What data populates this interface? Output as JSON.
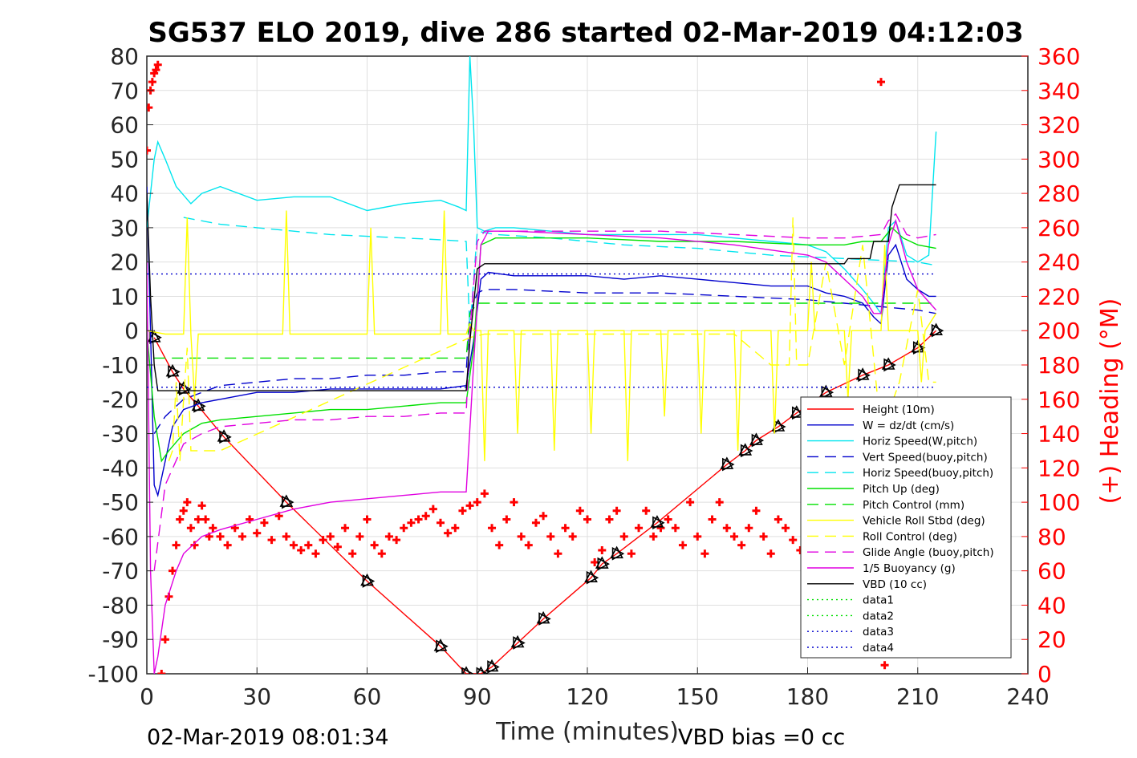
{
  "chart_data": {
    "type": "line",
    "title": "SG537 ELO 2019, dive 286 started 02-Mar-2019 04:12:03",
    "xlabel": "Time (minutes)",
    "ylabel_right": "(+) Heading (°M)",
    "xlim": [
      0,
      240
    ],
    "ylim": [
      -100,
      80
    ],
    "ylim_right": [
      0,
      360
    ],
    "x_ticks": [
      "0",
      "30",
      "60",
      "90",
      "120",
      "150",
      "180",
      "210",
      "240"
    ],
    "y_ticks": [
      "80",
      "70",
      "60",
      "50",
      "40",
      "30",
      "20",
      "10",
      "0",
      "-10",
      "-20",
      "-30",
      "-40",
      "-50",
      "-60",
      "-70",
      "-80",
      "-90",
      "-100"
    ],
    "y_right_ticks": [
      "360",
      "340",
      "320",
      "300",
      "280",
      "260",
      "240",
      "220",
      "200",
      "180",
      "160",
      "140",
      "120",
      "100",
      "80",
      "60",
      "40",
      "20",
      "0"
    ],
    "grid": true,
    "legend_position": "lower-right",
    "footer_left": "02-Mar-2019 08:01:34",
    "footer_right": "VBD bias =0 cc",
    "colors": {
      "height": "#ff0000",
      "w": "#0000cd",
      "horiz_w": "#00e5ee",
      "vert_buoy": "#0000cd",
      "horiz_buoy": "#00e5ee",
      "pitch": "#00e000",
      "pitch_ctrl": "#00e000",
      "roll": "#ffff00",
      "roll_ctrl": "#ffff00",
      "glide": "#e000e0",
      "buoyancy": "#e000e0",
      "vbd": "#000000",
      "heading": "#ff0000"
    },
    "series": [
      {
        "name": "Height (10m)",
        "color": "#ff0000",
        "dash": "",
        "marker": "triangle",
        "x": [
          2,
          7,
          10,
          14,
          21,
          38,
          60,
          80,
          87,
          91,
          94,
          101,
          108,
          121,
          124,
          128,
          139,
          158,
          163,
          166,
          172,
          177,
          185,
          195,
          202,
          210,
          215
        ],
        "y": [
          -2,
          -12,
          -17,
          -22,
          -31,
          -50,
          -73,
          -92,
          -100,
          -100,
          -98,
          -91,
          -84,
          -72,
          -68,
          -65,
          -56,
          -39,
          -35,
          -32,
          -28,
          -24,
          -18,
          -13,
          -10,
          -5,
          0
        ]
      },
      {
        "name": "W = dz/dt (cm/s)",
        "color": "#0000cd",
        "dash": "",
        "x": [
          0,
          1,
          2,
          3,
          5,
          7,
          10,
          15,
          20,
          30,
          40,
          50,
          60,
          70,
          80,
          87,
          89,
          91,
          93,
          100,
          110,
          120,
          130,
          140,
          150,
          160,
          170,
          180,
          185,
          190,
          195,
          198,
          200,
          202,
          204,
          207,
          210,
          213,
          215
        ],
        "y": [
          42,
          0,
          -45,
          -48,
          -38,
          -28,
          -23,
          -21,
          -20,
          -18,
          -18,
          -17,
          -17,
          -17,
          -17,
          -16,
          -3,
          15,
          17,
          16,
          16,
          16,
          15,
          16,
          15,
          14,
          13,
          13,
          11,
          10,
          8,
          4,
          2,
          22,
          25,
          15,
          12,
          10,
          10
        ]
      },
      {
        "name": "Horiz Speed(W,pitch)",
        "color": "#00e5ee",
        "dash": "",
        "x": [
          0,
          2,
          3,
          5,
          8,
          12,
          15,
          20,
          30,
          40,
          50,
          60,
          70,
          80,
          85,
          87,
          88,
          89,
          90,
          92,
          95,
          100,
          110,
          120,
          130,
          140,
          150,
          160,
          170,
          180,
          185,
          190,
          195,
          198,
          200,
          202,
          204,
          207,
          210,
          213,
          215
        ],
        "y": [
          30,
          50,
          55,
          50,
          42,
          37,
          40,
          42,
          38,
          39,
          39,
          35,
          37,
          38,
          36,
          35,
          80,
          60,
          30,
          29,
          30,
          30,
          29,
          28,
          28,
          28,
          28,
          27,
          26,
          25,
          23,
          18,
          12,
          8,
          5,
          30,
          32,
          22,
          20,
          22,
          58
        ]
      },
      {
        "name": "Vert Speed(buoy,pitch)",
        "color": "#0000cd",
        "dash": "14,8",
        "x": [
          2,
          5,
          10,
          15,
          20,
          30,
          40,
          50,
          60,
          70,
          80,
          87,
          88,
          90,
          92,
          100,
          120,
          140,
          160,
          180,
          190,
          200,
          210,
          215
        ],
        "y": [
          -30,
          -25,
          -20,
          -18,
          -16,
          -15,
          -14,
          -14,
          -13,
          -13,
          -12,
          -12,
          5,
          11,
          12,
          12,
          11,
          11,
          10,
          9,
          8,
          7,
          6,
          5
        ]
      },
      {
        "name": "Horiz Speed(buoy,pitch)",
        "color": "#00e5ee",
        "dash": "14,8",
        "x": [
          10,
          20,
          30,
          40,
          50,
          60,
          70,
          80,
          87,
          88,
          90,
          95,
          110,
          130,
          150,
          170,
          190,
          210,
          215
        ],
        "y": [
          33,
          31,
          30,
          29,
          28,
          27.5,
          27,
          26.5,
          26,
          0,
          29,
          28,
          27,
          25,
          24,
          22,
          21,
          20,
          19
        ]
      },
      {
        "name": "Pitch Up (deg)",
        "color": "#00e000",
        "dash": "",
        "x": [
          0,
          2,
          4,
          6,
          10,
          15,
          20,
          30,
          40,
          50,
          60,
          70,
          80,
          87,
          89,
          91,
          95,
          100,
          120,
          140,
          160,
          180,
          190,
          195,
          200,
          203,
          206,
          210,
          215
        ],
        "y": [
          0,
          -25,
          -38,
          -35,
          -30,
          -27,
          -26,
          -25,
          -24,
          -23,
          -23,
          -22,
          -21,
          -21,
          -5,
          25,
          27,
          27,
          27,
          26,
          26,
          25,
          25,
          26,
          26,
          30,
          27,
          25,
          24
        ]
      },
      {
        "name": "Pitch Control (mm)",
        "color": "#00e000",
        "dash": "14,8",
        "x": [
          2,
          10,
          20,
          40,
          60,
          80,
          87,
          88,
          90,
          100,
          130,
          160,
          190,
          215
        ],
        "y": [
          -8,
          -8,
          -8,
          -8,
          -8,
          -8,
          -8,
          5,
          8,
          8,
          8,
          8,
          8,
          8
        ]
      },
      {
        "name": "Vehicle Roll Stbd (deg)",
        "color": "#ffff00",
        "dash": "",
        "x": [
          0,
          5,
          8,
          10,
          11,
          12,
          13,
          14,
          20,
          37,
          38,
          39,
          60,
          61,
          62,
          80,
          81,
          82,
          87,
          88,
          89,
          91,
          92,
          93,
          100,
          101,
          102,
          110,
          111,
          112,
          120,
          121,
          122,
          130,
          131,
          132,
          140,
          141,
          142,
          150,
          151,
          152,
          160,
          161,
          162,
          170,
          171,
          172,
          180,
          181,
          182,
          190,
          191,
          192,
          200,
          201,
          202,
          210,
          211,
          212,
          215
        ],
        "y": [
          0,
          -1,
          -1,
          -1,
          33,
          -1,
          -20,
          -1,
          -1,
          -1,
          35,
          -1,
          -1,
          30,
          -1,
          -1,
          35,
          -1,
          -1,
          2,
          0,
          0,
          -38,
          0,
          0,
          -30,
          0,
          0,
          -35,
          0,
          0,
          -30,
          0,
          0,
          -38,
          0,
          0,
          -25,
          0,
          0,
          -30,
          0,
          0,
          -35,
          0,
          0,
          -30,
          0,
          0,
          20,
          0,
          0,
          -20,
          0,
          0,
          25,
          0,
          0,
          -15,
          0,
          5
        ]
      },
      {
        "name": "Roll Control (deg)",
        "color": "#ffff00",
        "dash": "14,8",
        "x": [
          6,
          7,
          8,
          9,
          10,
          11,
          12,
          20,
          88,
          92,
          120,
          160,
          170,
          175,
          176,
          177,
          180,
          185,
          190,
          195,
          200,
          205,
          210,
          213,
          215
        ],
        "y": [
          -38,
          -35,
          -15,
          -38,
          -20,
          -5,
          -35,
          -35,
          -2,
          -1,
          -1,
          -1,
          -10,
          -10,
          33,
          -10,
          -10,
          20,
          -10,
          25,
          -30,
          -15,
          12,
          -15,
          -15
        ]
      },
      {
        "name": "Glide Angle (buoy,pitch)",
        "color": "#e000e0",
        "dash": "14,8",
        "x": [
          2,
          5,
          10,
          15,
          20,
          30,
          40,
          50,
          60,
          70,
          80,
          87,
          88,
          90,
          92,
          100,
          120,
          140,
          160,
          180,
          190,
          200,
          202,
          204,
          207,
          210,
          215
        ],
        "y": [
          -70,
          -45,
          -33,
          -30,
          -28,
          -27,
          -26,
          -26,
          -25,
          -25,
          -24,
          -24,
          0,
          26,
          29,
          29,
          29,
          29,
          28,
          27,
          27,
          28,
          32,
          34,
          28,
          27,
          28
        ]
      },
      {
        "name": "1/5 Buoyancy (g)",
        "color": "#e000e0",
        "dash": "",
        "x": [
          0,
          1,
          2,
          3,
          5,
          8,
          10,
          15,
          20,
          30,
          40,
          50,
          60,
          70,
          80,
          87,
          89,
          91,
          93,
          100,
          120,
          140,
          160,
          180,
          185,
          190,
          195,
          198,
          200,
          202,
          204,
          207,
          210,
          215
        ],
        "y": [
          20,
          -70,
          -100,
          -95,
          -80,
          -70,
          -65,
          -60,
          -58,
          -55,
          -52,
          -50,
          -49,
          -48,
          -47,
          -47,
          -10,
          25,
          29,
          29,
          28,
          27,
          25,
          22,
          20,
          15,
          10,
          5,
          5,
          25,
          32,
          20,
          12,
          6
        ]
      },
      {
        "name": "VBD (10 cc)",
        "color": "#000000",
        "dash": "",
        "x": [
          0,
          1,
          2,
          3,
          20,
          40,
          60,
          80,
          87,
          88,
          90,
          92,
          100,
          120,
          140,
          160,
          175,
          176,
          190,
          191,
          197,
          198,
          202,
          203,
          205,
          215
        ],
        "y": [
          40,
          10,
          -10,
          -17.5,
          -17.5,
          -17.5,
          -17.5,
          -17.5,
          -17.5,
          -3,
          18,
          19.5,
          19.5,
          19.5,
          19.5,
          19.5,
          19.5,
          19.5,
          19.5,
          21,
          21,
          26,
          26,
          36,
          42.5,
          42.5
        ]
      },
      {
        "name": "data1",
        "color": "#00e000",
        "dash": "2,4",
        "x": [],
        "y": []
      },
      {
        "name": "data2",
        "color": "#00e000",
        "dash": "2,4",
        "x": [],
        "y": []
      },
      {
        "name": "data3",
        "color": "#0000cd",
        "dash": "2,4",
        "x": [
          0,
          215
        ],
        "y": [
          16.5,
          16.5
        ]
      },
      {
        "name": "data4",
        "color": "#0000cd",
        "dash": "2,4",
        "x": [
          0,
          215
        ],
        "y": [
          -16.5,
          -16.5
        ]
      }
    ],
    "heading_series": {
      "color": "#ff0000",
      "marker": "+",
      "x": [
        0,
        0.5,
        1,
        1.5,
        2,
        2.5,
        3,
        4,
        5,
        6,
        7,
        8,
        9,
        10,
        11,
        12,
        13,
        14,
        15,
        16,
        17,
        18,
        20,
        22,
        24,
        26,
        28,
        30,
        32,
        34,
        36,
        38,
        40,
        42,
        44,
        46,
        48,
        50,
        52,
        54,
        56,
        58,
        60,
        62,
        64,
        66,
        68,
        70,
        72,
        74,
        76,
        78,
        80,
        82,
        84,
        86,
        88,
        90,
        92,
        94,
        96,
        98,
        100,
        102,
        104,
        106,
        108,
        110,
        112,
        114,
        116,
        118,
        120,
        122,
        124,
        126,
        128,
        130,
        132,
        134,
        136,
        138,
        140,
        142,
        144,
        146,
        148,
        150,
        152,
        154,
        156,
        158,
        160,
        162,
        164,
        166,
        168,
        170,
        172,
        174,
        176,
        178,
        180,
        182,
        184,
        186,
        188,
        190,
        192,
        194,
        196,
        198,
        199,
        200,
        201
      ],
      "y": [
        305,
        330,
        340,
        345,
        350,
        352,
        355,
        0,
        20,
        45,
        60,
        75,
        90,
        95,
        100,
        85,
        75,
        90,
        98,
        90,
        80,
        85,
        80,
        75,
        85,
        80,
        90,
        82,
        88,
        78,
        92,
        80,
        75,
        72,
        75,
        70,
        78,
        80,
        74,
        85,
        70,
        80,
        90,
        75,
        70,
        80,
        78,
        85,
        88,
        90,
        92,
        96,
        88,
        82,
        85,
        95,
        98,
        100,
        105,
        85,
        75,
        90,
        100,
        80,
        75,
        88,
        92,
        80,
        70,
        85,
        80,
        95,
        90,
        65,
        72,
        90,
        95,
        80,
        70,
        85,
        95,
        80,
        85,
        90,
        85,
        75,
        100,
        80,
        70,
        90,
        100,
        85,
        80,
        75,
        85,
        95,
        80,
        70,
        90,
        85,
        78,
        72,
        80,
        85,
        78,
        82,
        80,
        75,
        78,
        80,
        82,
        85,
        80,
        345,
        5
      ]
    }
  }
}
